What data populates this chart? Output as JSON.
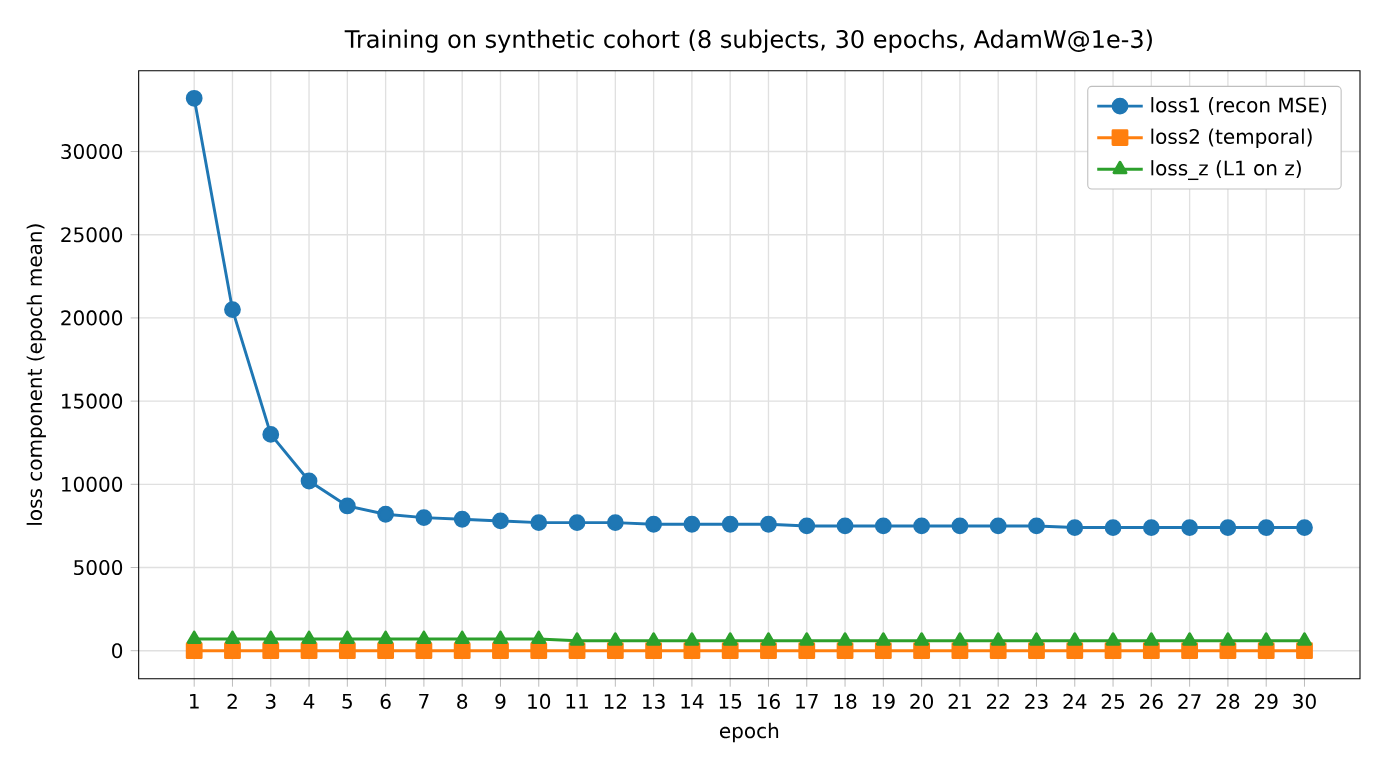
{
  "chart_data": {
    "type": "line",
    "title": "Training on synthetic cohort (8 subjects, 30 epochs, AdamW@1e-3)",
    "xlabel": "epoch",
    "ylabel": "loss component (epoch mean)",
    "x": [
      1,
      2,
      3,
      4,
      5,
      6,
      7,
      8,
      9,
      10,
      11,
      12,
      13,
      14,
      15,
      16,
      17,
      18,
      19,
      20,
      21,
      22,
      23,
      24,
      25,
      26,
      27,
      28,
      29,
      30
    ],
    "series": [
      {
        "name": "loss1 (recon MSE)",
        "color": "#1f77b4",
        "marker": "circle",
        "values": [
          33200,
          20500,
          13000,
          10200,
          8700,
          8200,
          8000,
          7900,
          7800,
          7700,
          7700,
          7700,
          7600,
          7600,
          7600,
          7600,
          7500,
          7500,
          7500,
          7500,
          7500,
          7500,
          7500,
          7400,
          7400,
          7400,
          7400,
          7400,
          7400,
          7400
        ]
      },
      {
        "name": "loss2 (temporal)",
        "color": "#ff7f0e",
        "marker": "square",
        "values": [
          0,
          0,
          0,
          0,
          0,
          0,
          0,
          0,
          0,
          0,
          0,
          0,
          0,
          0,
          0,
          0,
          0,
          0,
          0,
          0,
          0,
          0,
          0,
          0,
          0,
          0,
          0,
          0,
          0,
          0
        ]
      },
      {
        "name": "loss_z (L1 on z)",
        "color": "#2ca02c",
        "marker": "triangle",
        "values": [
          700,
          700,
          700,
          700,
          700,
          700,
          700,
          700,
          700,
          700,
          600,
          600,
          600,
          600,
          600,
          600,
          600,
          600,
          600,
          600,
          600,
          600,
          600,
          600,
          600,
          600,
          600,
          600,
          600,
          600
        ]
      }
    ],
    "xlim": [
      -0.45,
      31.45
    ],
    "ylim": [
      -1680,
      34860
    ],
    "xticks": [
      1,
      2,
      3,
      4,
      5,
      6,
      7,
      8,
      9,
      10,
      11,
      12,
      13,
      14,
      15,
      16,
      17,
      18,
      19,
      20,
      21,
      22,
      23,
      24,
      25,
      26,
      27,
      28,
      29,
      30
    ],
    "yticks": [
      0,
      5000,
      10000,
      15000,
      20000,
      25000,
      30000
    ],
    "grid": true,
    "legend": "top right",
    "line_style": "solid"
  }
}
